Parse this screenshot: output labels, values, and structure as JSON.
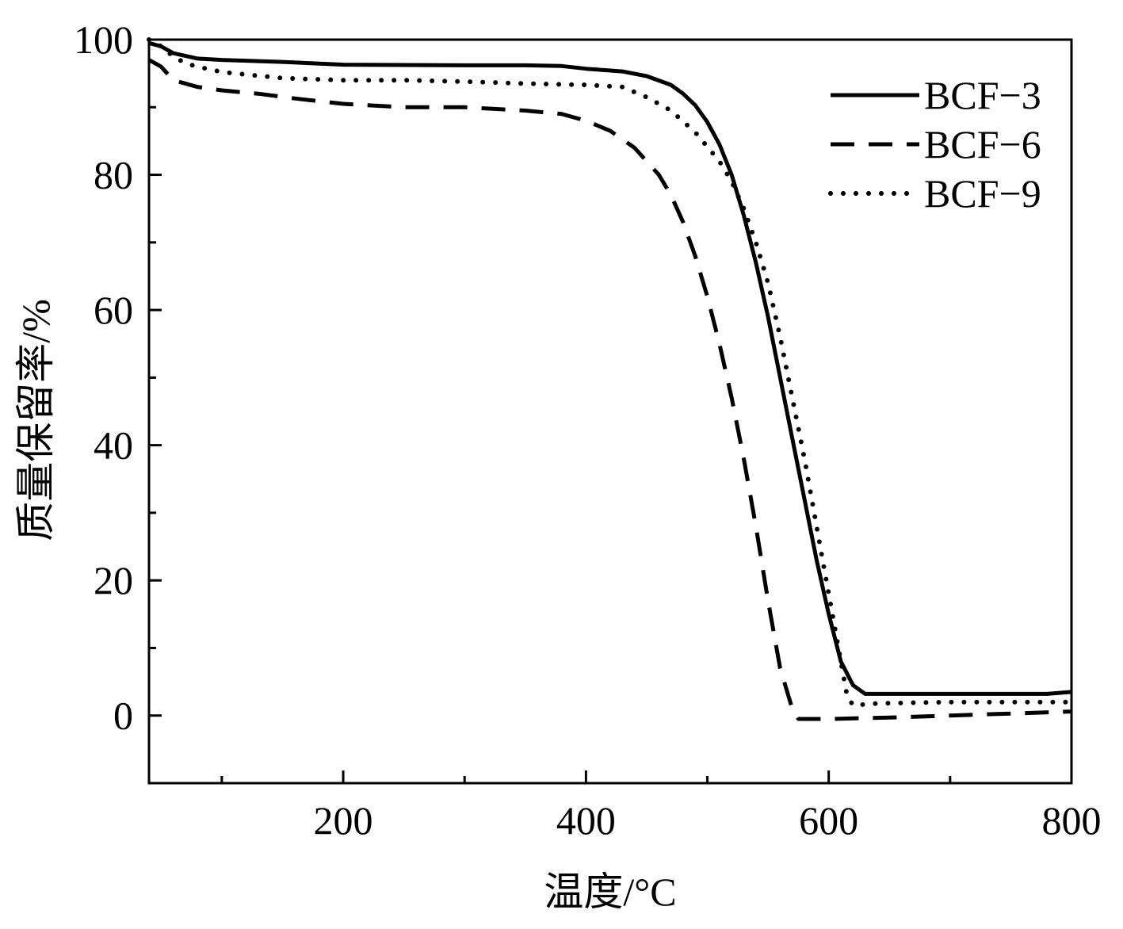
{
  "chart_data": {
    "type": "line",
    "xlabel": "温度/°C",
    "ylabel": "质量保留率/%",
    "xlim": [
      40,
      800
    ],
    "ylim": [
      -10,
      100
    ],
    "x_ticks": [
      200,
      400,
      600,
      800
    ],
    "y_ticks": [
      0,
      20,
      40,
      60,
      80,
      100
    ],
    "legend_position": "top-right",
    "grid": false,
    "series": [
      {
        "name": "BCF−3",
        "style": "solid",
        "x": [
          40,
          50,
          60,
          80,
          100,
          150,
          200,
          300,
          350,
          380,
          400,
          430,
          450,
          470,
          480,
          490,
          500,
          510,
          520,
          530,
          540,
          550,
          560,
          570,
          580,
          590,
          600,
          610,
          620,
          630,
          640,
          700,
          780,
          800
        ],
        "y": [
          99.5,
          99,
          98,
          97.2,
          97,
          96.7,
          96.3,
          96.2,
          96.2,
          96.1,
          95.7,
          95.3,
          94.6,
          93.3,
          92,
          90.3,
          87.8,
          84.5,
          80,
          74,
          67,
          59,
          50,
          41,
          32,
          23,
          15,
          8,
          4.5,
          3.2,
          3.2,
          3.2,
          3.2,
          3.5
        ]
      },
      {
        "name": "BCF−6",
        "style": "dashed",
        "x": [
          40,
          50,
          60,
          80,
          100,
          130,
          160,
          200,
          250,
          300,
          350,
          380,
          400,
          420,
          440,
          460,
          470,
          480,
          490,
          500,
          510,
          520,
          530,
          540,
          550,
          560,
          570,
          575,
          580,
          600,
          650,
          700,
          750,
          800
        ],
        "y": [
          97,
          96,
          94,
          93,
          92.5,
          92,
          91.3,
          90.5,
          90,
          90,
          89.5,
          89,
          88,
          86.5,
          84,
          80,
          77,
          73,
          68,
          62,
          55,
          47,
          38,
          28,
          17,
          7,
          1,
          -0.5,
          -0.5,
          -0.5,
          -0.3,
          0,
          0.3,
          0.6
        ]
      },
      {
        "name": "BCF−9",
        "style": "dotted",
        "x": [
          40,
          50,
          60,
          70,
          80,
          100,
          150,
          200,
          250,
          300,
          350,
          400,
          430,
          450,
          470,
          490,
          510,
          520,
          530,
          540,
          550,
          560,
          570,
          580,
          590,
          600,
          610,
          615,
          620,
          640,
          700,
          800
        ],
        "y": [
          100,
          99,
          97.5,
          96.5,
          96,
          95.2,
          94.3,
          94,
          94,
          93.8,
          93.5,
          93.3,
          93,
          91.5,
          89.5,
          86.3,
          82,
          79,
          75,
          70,
          64,
          56,
          47,
          38,
          28,
          18,
          8,
          3,
          1.5,
          1.8,
          2,
          2
        ]
      }
    ]
  }
}
